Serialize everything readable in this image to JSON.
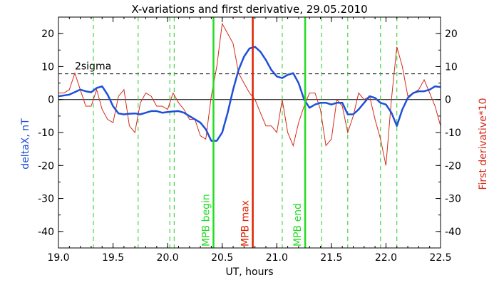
{
  "chart_data": {
    "type": "line",
    "title": "X-variations and first derivative, 29.05.2010",
    "xlabel": "UT, hours",
    "ylabel_left": "deltaX, nT",
    "ylabel_right": "First derivative*10",
    "xlim": [
      19.0,
      22.5
    ],
    "ylim": [
      -45,
      25
    ],
    "x_ticks": [
      "19.0",
      "19.5",
      "20.0",
      "20.5",
      "21.0",
      "21.5",
      "22.0",
      "22.5"
    ],
    "y_ticks": [
      "20",
      "10",
      "0",
      "-10",
      "-20",
      "-30",
      "-40"
    ],
    "threshold": {
      "label": "2sigma",
      "value": 7.8
    },
    "colors": {
      "deltaX": "#1f4fd8",
      "derivative": "#d42a1a",
      "mpb_edges": "#22dd22",
      "mpb_max": "#dd2200",
      "dashed_markers": "#22cc22"
    },
    "mpb_lines": [
      {
        "label": "MPB begin",
        "x": 20.42
      },
      {
        "label": "MPB max",
        "x": 20.78
      },
      {
        "label": "MPB end",
        "x": 21.26
      }
    ],
    "dashed_markers": [
      19.32,
      19.73,
      20.02,
      20.06,
      21.05,
      21.41,
      21.65,
      21.95,
      22.1
    ],
    "series": [
      {
        "name": "deltaX",
        "x": [
          19.0,
          19.1,
          19.2,
          19.25,
          19.3,
          19.35,
          19.4,
          19.45,
          19.5,
          19.55,
          19.6,
          19.65,
          19.7,
          19.75,
          19.8,
          19.85,
          19.9,
          19.95,
          20.0,
          20.05,
          20.1,
          20.15,
          20.2,
          20.25,
          20.3,
          20.35,
          20.4,
          20.45,
          20.5,
          20.55,
          20.6,
          20.65,
          20.7,
          20.75,
          20.8,
          20.85,
          20.9,
          20.95,
          21.0,
          21.05,
          21.1,
          21.15,
          21.2,
          21.25,
          21.3,
          21.35,
          21.4,
          21.45,
          21.5,
          21.55,
          21.6,
          21.65,
          21.7,
          21.75,
          21.8,
          21.85,
          21.9,
          21.95,
          22.0,
          22.05,
          22.1,
          22.15,
          22.2,
          22.25,
          22.3,
          22.35,
          22.4,
          22.45,
          22.5
        ],
        "values": [
          1,
          1.5,
          3,
          2.5,
          2.2,
          3.5,
          4,
          1.5,
          -2,
          -4.2,
          -4.5,
          -4.3,
          -4.2,
          -4.5,
          -4,
          -3.5,
          -3.5,
          -4,
          -3.8,
          -3.6,
          -3.5,
          -4,
          -5,
          -6,
          -7,
          -9,
          -12.5,
          -12.5,
          -10,
          -4,
          3,
          9,
          13,
          15.5,
          16,
          14.5,
          12,
          9,
          7,
          6.5,
          7.5,
          8,
          5,
          0,
          -2.5,
          -1.5,
          -1,
          -1,
          -1.5,
          -1,
          -1,
          -4.5,
          -4.5,
          -3,
          -1,
          1,
          0.5,
          -1,
          -1.5,
          -4,
          -8,
          -3,
          0.5,
          2,
          2.5,
          2.5,
          3,
          4,
          3.8
        ]
      },
      {
        "name": "First derivative*10",
        "x": [
          19.0,
          19.05,
          19.1,
          19.15,
          19.2,
          19.25,
          19.3,
          19.35,
          19.4,
          19.45,
          19.5,
          19.55,
          19.6,
          19.65,
          19.7,
          19.75,
          19.8,
          19.85,
          19.9,
          19.95,
          20.0,
          20.05,
          20.1,
          20.15,
          20.2,
          20.25,
          20.3,
          20.35,
          20.4,
          20.45,
          20.5,
          20.55,
          20.6,
          20.65,
          20.7,
          20.75,
          20.8,
          20.85,
          20.9,
          20.95,
          21.0,
          21.05,
          21.1,
          21.15,
          21.2,
          21.25,
          21.3,
          21.35,
          21.4,
          21.45,
          21.5,
          21.55,
          21.6,
          21.65,
          21.7,
          21.75,
          21.8,
          21.85,
          21.9,
          21.95,
          22.0,
          22.05,
          22.1,
          22.15,
          22.2,
          22.25,
          22.3,
          22.35,
          22.4,
          22.45,
          22.5
        ],
        "values": [
          2,
          2,
          3,
          8,
          3,
          -2,
          -2,
          3,
          -3,
          -6,
          -7,
          1,
          3,
          -8,
          -10,
          -1,
          2,
          1,
          -2,
          -2,
          -3,
          2,
          -1,
          -3,
          -6,
          -6,
          -11,
          -12,
          1,
          10,
          23,
          20,
          17,
          8,
          5,
          2,
          0,
          -4,
          -8,
          -8,
          -10,
          0,
          -10,
          -14,
          -7,
          -2,
          2,
          2,
          -3,
          -14,
          -12,
          0,
          -2,
          -10,
          -5,
          2,
          0,
          1,
          -6,
          -12,
          -20,
          0,
          16,
          10,
          1,
          2,
          3,
          6,
          2,
          -2,
          -8
        ]
      }
    ]
  }
}
